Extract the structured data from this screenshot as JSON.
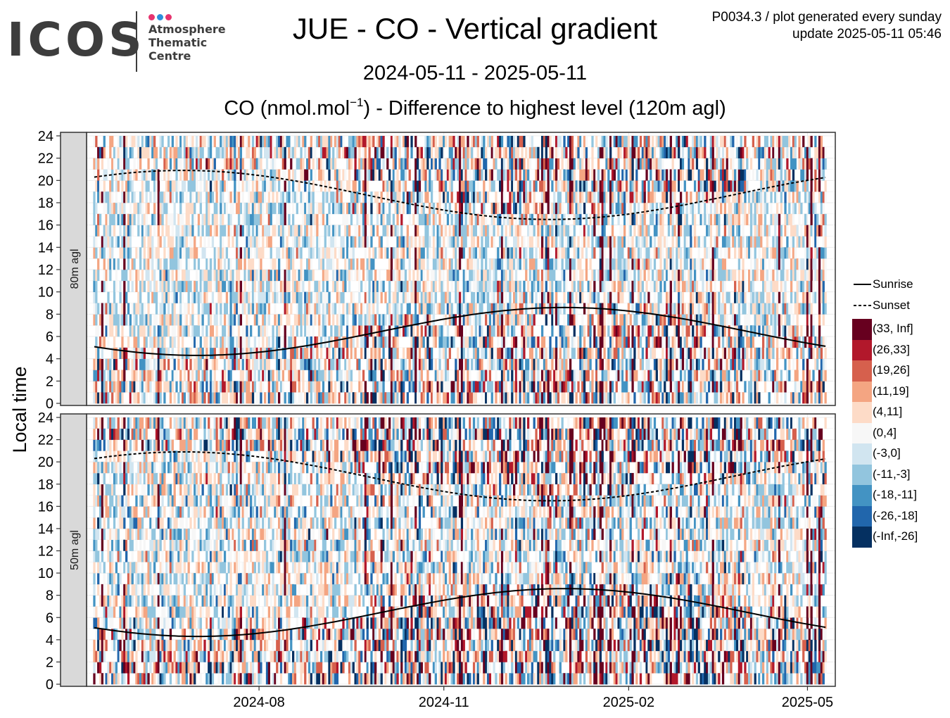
{
  "header": {
    "logo_word": "ICOS",
    "logo_lines": [
      "Atmosphere",
      "Thematic",
      "Centre"
    ],
    "logo_dot_colors": [
      "#e6346f",
      "#2d8fdb",
      "#e6346f"
    ],
    "title": "JUE - CO - Vertical gradient",
    "meta_line1": "P0034.3 / plot generated every sunday",
    "meta_line2": "update  2025-05-11 05:46",
    "period": "2024-05-11 - 2025-05-11",
    "subtitle_pre": "CO (nmol.mol",
    "subtitle_sup": "−1",
    "subtitle_post": ") - Difference to highest level (120m agl)"
  },
  "chart_data": {
    "type": "heatmap",
    "ylabel": "Local time",
    "xlabel": "",
    "x_range": [
      "2024-05-11",
      "2025-05-11"
    ],
    "ylim": [
      0,
      24
    ],
    "x_ticks": [
      {
        "date": "2024-08-01",
        "label": "2024-08"
      },
      {
        "date": "2024-11-01",
        "label": "2024-11"
      },
      {
        "date": "2025-02-01",
        "label": "2025-02"
      },
      {
        "date": "2025-05-01",
        "label": "2025-05"
      }
    ],
    "y_ticks": [
      0,
      2,
      4,
      6,
      8,
      10,
      12,
      14,
      16,
      18,
      20,
      22,
      24
    ],
    "panels": [
      {
        "label": "80m agl",
        "intensity": 1.0
      },
      {
        "label": "50m agl",
        "intensity": 1.35
      }
    ],
    "lines": [
      {
        "name": "Sunrise",
        "style": "solid",
        "min_hour": 4.3,
        "min_date": "2024-06-21",
        "max_hour": 8.6,
        "max_date": "2024-12-31"
      },
      {
        "name": "Sunset",
        "style": "dashed",
        "max_hour": 20.9,
        "max_date": "2024-06-24",
        "min_hour": 16.5,
        "min_date": "2024-12-15"
      }
    ],
    "color_scale": [
      {
        "label": "(33, Inf]",
        "color": "#67001f"
      },
      {
        "label": "(26,33]",
        "color": "#b2182b"
      },
      {
        "label": "(19,26]",
        "color": "#d6604d"
      },
      {
        "label": "(11,19]",
        "color": "#f4a582"
      },
      {
        "label": "(4,11]",
        "color": "#fddbc7"
      },
      {
        "label": "(0,4]",
        "color": "#f7f7f7"
      },
      {
        "label": "(-3,0]",
        "color": "#d1e5f0"
      },
      {
        "label": "(-11,-3]",
        "color": "#92c5de"
      },
      {
        "label": "(-18,-11]",
        "color": "#4393c3"
      },
      {
        "label": "(-26,-18]",
        "color": "#2166ac"
      },
      {
        "label": "(-Inf,-26]",
        "color": "#053061"
      }
    ],
    "legend_position": "right",
    "grid": true
  }
}
